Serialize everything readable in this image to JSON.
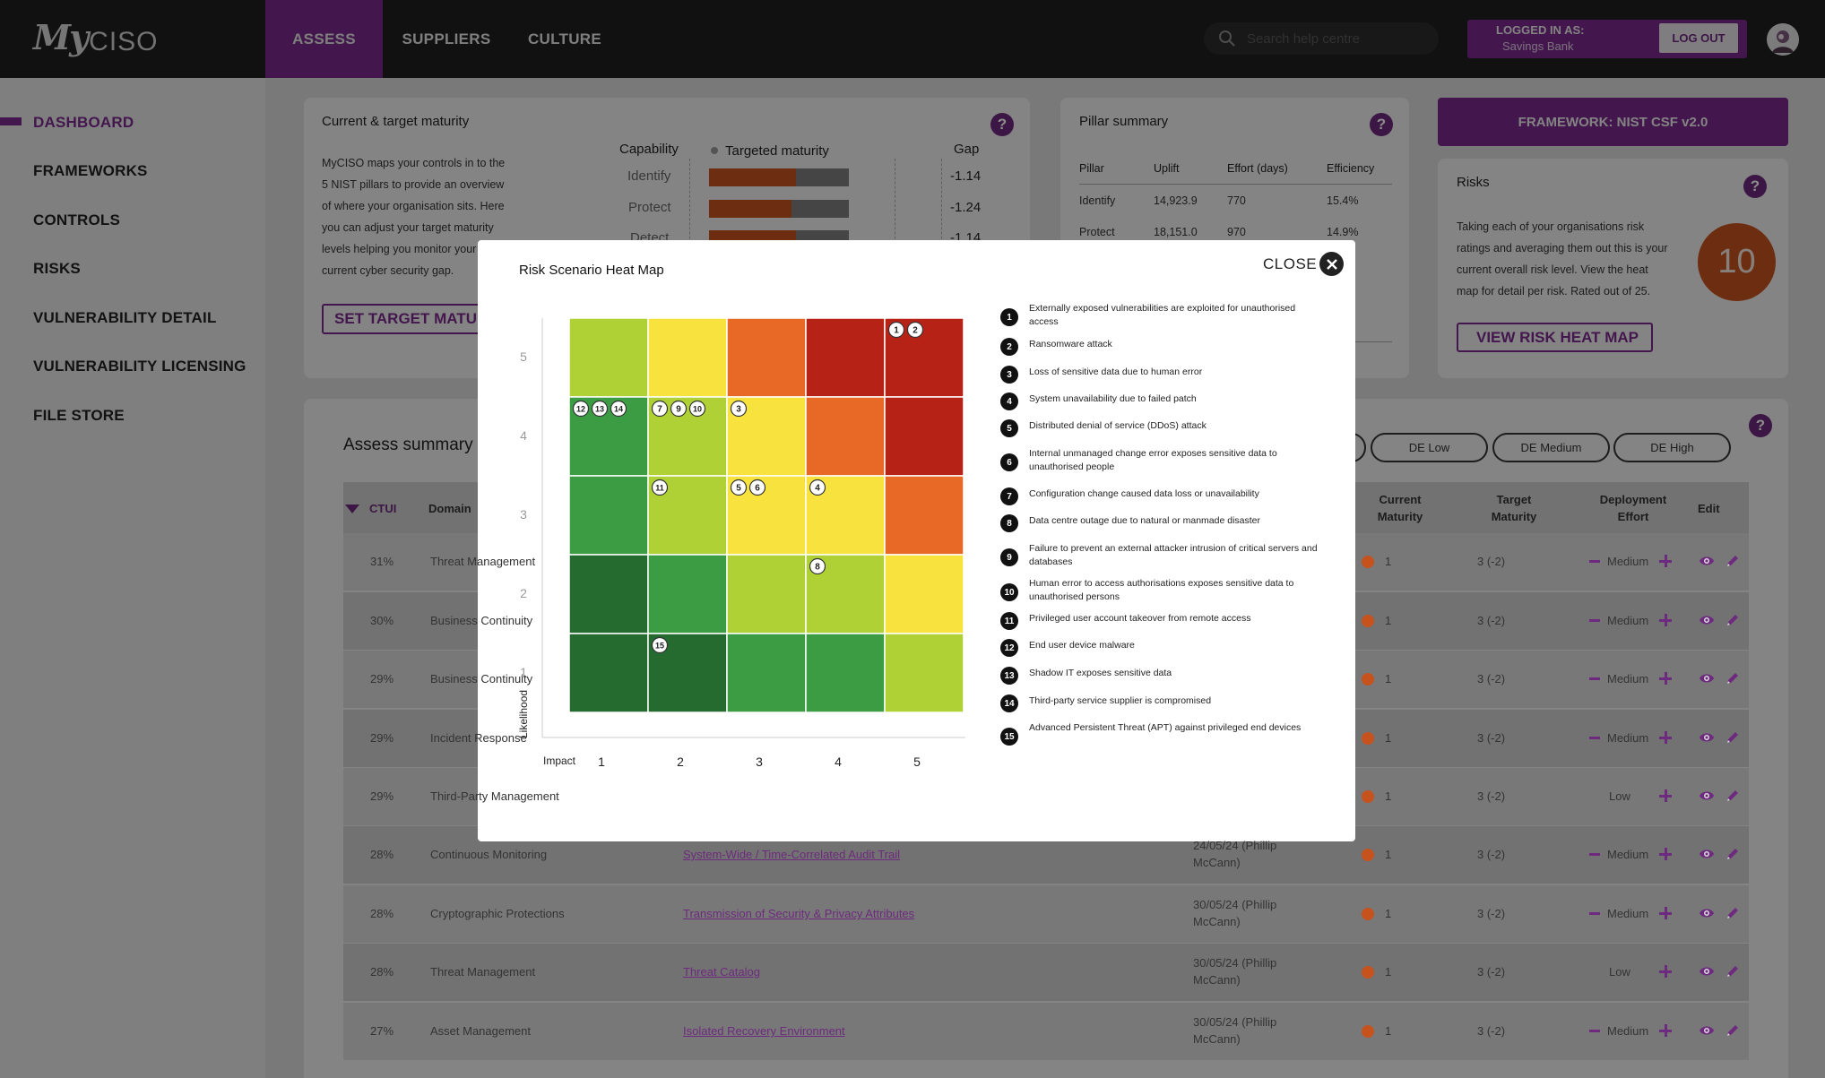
{
  "nav": {
    "logo_my": "My",
    "logo_ciso": "CISO",
    "tabs": [
      {
        "label": "ASSESS"
      },
      {
        "label": "SUPPLIERS"
      },
      {
        "label": "CULTURE"
      }
    ],
    "search_placeholder": "Search help centre",
    "logged_in_label": "LOGGED IN AS:",
    "logged_in_name": "Savings Bank",
    "logout_label": "LOG OUT"
  },
  "sidebar": {
    "items": [
      {
        "label": "DASHBOARD"
      },
      {
        "label": "FRAMEWORKS"
      },
      {
        "label": "CONTROLS"
      },
      {
        "label": "RISKS"
      },
      {
        "label": "VULNERABILITY DETAIL"
      },
      {
        "label": "VULNERABILITY LICENSING"
      },
      {
        "label": "FILE STORE"
      }
    ]
  },
  "maturity_card": {
    "title": "Current & target maturity",
    "description_lines": [
      "MyCISO maps your controls in to the",
      "5 NIST pillars to provide an overview",
      "of where your organisation sits. Here",
      "you can adjust your target maturity",
      "levels helping you monitor your",
      "current cyber security gap."
    ],
    "button": "SET TARGET MATURITY",
    "capability_header": "Capability",
    "targeted_header": "Targeted maturity",
    "gap_header": "Gap",
    "rows": [
      {
        "capability": "Identify",
        "gap": "-1.14",
        "fill": 0.62
      },
      {
        "capability": "Protect",
        "gap": "-1.24",
        "fill": 0.59
      },
      {
        "capability": "Detect",
        "gap": "-1.14",
        "fill": 0.62
      }
    ]
  },
  "pillar_card": {
    "title": "Pillar summary",
    "headers": [
      "Pillar",
      "Uplift",
      "Effort (days)",
      "Efficiency"
    ],
    "rows": [
      [
        "Identify",
        "14,923.9",
        "770",
        "15.4%"
      ],
      [
        "Protect",
        "18,151.0",
        "970",
        "14.9%"
      ]
    ]
  },
  "framework_button": "FRAMEWORK: NIST CSF v2.0",
  "risks_card": {
    "title": "Risks",
    "description_lines": [
      "Taking each of your organisations risk",
      "ratings and averaging them out this is your",
      "current overall risk level. View the heat",
      "map for detail per risk. Rated out of 25."
    ],
    "score": "10",
    "button": "VIEW RISK HEAT MAP"
  },
  "assess_summary": {
    "title": "Assess summary",
    "filters": [
      "DE Low",
      "DE Medium",
      "DE High"
    ],
    "headers": {
      "ctui": "CTUI",
      "domain": "Domain",
      "current_maturity": "Current Maturity",
      "target_maturity": "Target Maturity",
      "deployment_effort": "Deployment Effort",
      "edit": "Edit"
    },
    "rows": [
      {
        "ctui": "31%",
        "domain": "Threat Management",
        "control": "",
        "date": "",
        "current": "1",
        "target": "3 (-2)",
        "effort": "Medium",
        "has_minus": true
      },
      {
        "ctui": "30%",
        "domain": "Business Continuity",
        "control": "",
        "date": "",
        "current": "1",
        "target": "3 (-2)",
        "effort": "Medium",
        "has_minus": true
      },
      {
        "ctui": "29%",
        "domain": "Business Continuity",
        "control": "",
        "date": "",
        "current": "1",
        "target": "3 (-2)",
        "effort": "Medium",
        "has_minus": true
      },
      {
        "ctui": "29%",
        "domain": "Incident Response",
        "control": "",
        "date": "",
        "current": "1",
        "target": "3 (-2)",
        "effort": "Medium",
        "has_minus": true
      },
      {
        "ctui": "29%",
        "domain": "Third-Party Management",
        "control": "",
        "date": "",
        "current": "1",
        "target": "3 (-2)",
        "effort": "Low",
        "has_minus": false
      },
      {
        "ctui": "28%",
        "domain": "Continuous Monitoring",
        "control": "System-Wide / Time-Correlated Audit Trail",
        "date": "24/05/24 (Phillip McCann)",
        "current": "1",
        "target": "3 (-2)",
        "effort": "Medium",
        "has_minus": true
      },
      {
        "ctui": "28%",
        "domain": "Cryptographic Protections",
        "control": "Transmission of Security & Privacy Attributes",
        "date": "30/05/24 (Phillip McCann)",
        "current": "1",
        "target": "3 (-2)",
        "effort": "Medium",
        "has_minus": true
      },
      {
        "ctui": "28%",
        "domain": "Threat Management",
        "control": "Threat Catalog",
        "date": "30/05/24 (Phillip McCann)",
        "current": "1",
        "target": "3 (-2)",
        "effort": "Low",
        "has_minus": false
      },
      {
        "ctui": "27%",
        "domain": "Asset Management",
        "control": "Isolated Recovery Environment",
        "date": "30/05/24 (Phillip McCann)",
        "current": "1",
        "target": "3 (-2)",
        "effort": "Medium",
        "has_minus": true
      }
    ]
  },
  "modal": {
    "title": "Risk Scenario Heat Map",
    "close_label": "CLOSE",
    "x_axis_label": "Impact",
    "y_axis_label": "Likelihood",
    "x_ticks": [
      "1",
      "2",
      "3",
      "4",
      "5"
    ],
    "y_ticks": [
      "5",
      "4",
      "3",
      "2",
      "1"
    ],
    "colors": {
      "dark_green": "#256b30",
      "green": "#3b9c44",
      "light_green": "#b0d136",
      "yellow": "#f8e23d",
      "orange": "#e86826",
      "red": "#b72217"
    },
    "grid_rows": [
      [
        "light_green",
        "yellow",
        "orange",
        "red",
        "red"
      ],
      [
        "green",
        "light_green",
        "yellow",
        "orange",
        "red"
      ],
      [
        "green",
        "light_green",
        "yellow",
        "yellow",
        "orange"
      ],
      [
        "dark_green",
        "green",
        "light_green",
        "light_green",
        "yellow"
      ],
      [
        "dark_green",
        "dark_green",
        "green",
        "green",
        "light_green"
      ]
    ],
    "markers": [
      {
        "impact": 5,
        "likelihood": 5,
        "ids": [
          "1",
          "2"
        ]
      },
      {
        "impact": 1,
        "likelihood": 4,
        "ids": [
          "12",
          "13",
          "14"
        ]
      },
      {
        "impact": 2,
        "likelihood": 4,
        "ids": [
          "7",
          "9",
          "10"
        ]
      },
      {
        "impact": 3,
        "likelihood": 4,
        "ids": [
          "3"
        ]
      },
      {
        "impact": 2,
        "likelihood": 3,
        "ids": [
          "11"
        ]
      },
      {
        "impact": 3,
        "likelihood": 3,
        "ids": [
          "5",
          "6"
        ]
      },
      {
        "impact": 4,
        "likelihood": 3,
        "ids": [
          "4"
        ]
      },
      {
        "impact": 4,
        "likelihood": 2,
        "ids": [
          "8"
        ]
      },
      {
        "impact": 2,
        "likelihood": 1,
        "ids": [
          "15"
        ]
      }
    ],
    "legend": [
      {
        "num": "1",
        "text": "Externally exposed vulnerabilities are exploited for unauthorised access"
      },
      {
        "num": "2",
        "text": "Ransomware attack"
      },
      {
        "num": "3",
        "text": "Loss of sensitive data due to human error"
      },
      {
        "num": "4",
        "text": "System unavailability due to failed patch"
      },
      {
        "num": "5",
        "text": "Distributed denial of service (DDoS) attack"
      },
      {
        "num": "6",
        "text": "Internal unmanaged change error exposes sensitive data to unauthorised people"
      },
      {
        "num": "7",
        "text": "Configuration change caused data loss or unavailability"
      },
      {
        "num": "8",
        "text": "Data centre outage due to natural or manmade disaster"
      },
      {
        "num": "9",
        "text": "Failure to prevent an external attacker intrusion of critical servers and databases"
      },
      {
        "num": "10",
        "text": "Human error to access authorisations exposes sensitive data to unauthorised persons"
      },
      {
        "num": "11",
        "text": "Privileged user account takeover from remote access"
      },
      {
        "num": "12",
        "text": "End user device malware"
      },
      {
        "num": "13",
        "text": "Shadow IT exposes sensitive data"
      },
      {
        "num": "14",
        "text": "Third-party service supplier is compromised"
      },
      {
        "num": "15",
        "text": "Advanced Persistent Threat (APT) against privileged end devices"
      }
    ]
  }
}
